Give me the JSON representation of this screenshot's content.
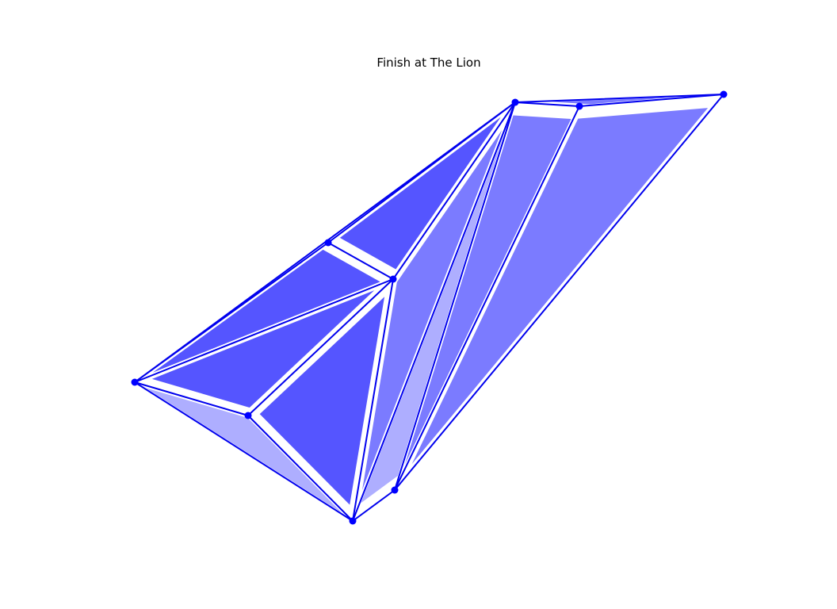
{
  "title": "Finish at The Lion",
  "colors": {
    "line": "#0000ee",
    "node": "#0000ff",
    "fill_dark": "#5555ff",
    "fill_mid": "#7b7bff",
    "fill_light": "#aeaeff"
  }
}
